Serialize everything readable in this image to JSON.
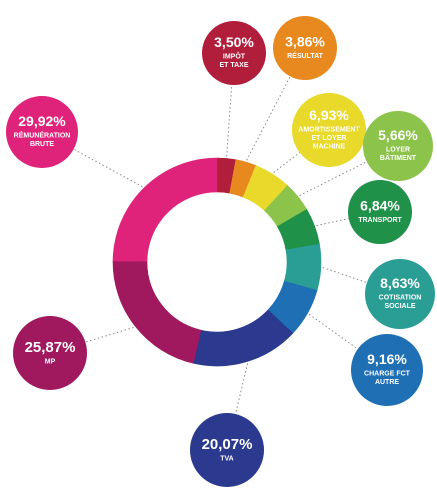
{
  "chart_data": {
    "type": "pie",
    "variant": "donut",
    "start": "top",
    "direction": "clockwise",
    "legend": "callout bubbles",
    "slices": [
      {
        "value_label": "3,50%",
        "label": [
          "IMPÔT",
          "ET TAXE"
        ],
        "value": 3.5,
        "color": "#b01e3c"
      },
      {
        "value_label": "3,86%",
        "label": [
          "RÉSULTAT"
        ],
        "value": 3.86,
        "color": "#e8891f"
      },
      {
        "value_label": "6,93%",
        "label": [
          "AMORTISSEMENT",
          "ET LOYER",
          "MACHINE"
        ],
        "value": 6.93,
        "color": "#e8d92a"
      },
      {
        "value_label": "5,66%",
        "label": [
          "LOYER",
          "BÂTIMENT"
        ],
        "value": 5.66,
        "color": "#8cc34a"
      },
      {
        "value_label": "6,84%",
        "label": [
          "TRANSPORT"
        ],
        "value": 6.84,
        "color": "#1f9148"
      },
      {
        "value_label": "8,63%",
        "label": [
          "COTISATION",
          "SOCIALE"
        ],
        "value": 8.63,
        "color": "#2a9e95"
      },
      {
        "value_label": "9,16%",
        "label": [
          "CHARGE FCT",
          "AUTRE"
        ],
        "value": 9.16,
        "color": "#1e6fb3"
      },
      {
        "value_label": "20,07%",
        "label": [
          "TVA"
        ],
        "value": 20.07,
        "color": "#2b3a8e"
      },
      {
        "value_label": "25,87%",
        "label": [
          "MP"
        ],
        "value": 25.87,
        "color": "#a0185e"
      },
      {
        "value_label": "29,92%",
        "label": [
          "RÉMUNÉRATION",
          "BRUTE"
        ],
        "value": 29.92,
        "color": "#e0237a"
      }
    ]
  }
}
